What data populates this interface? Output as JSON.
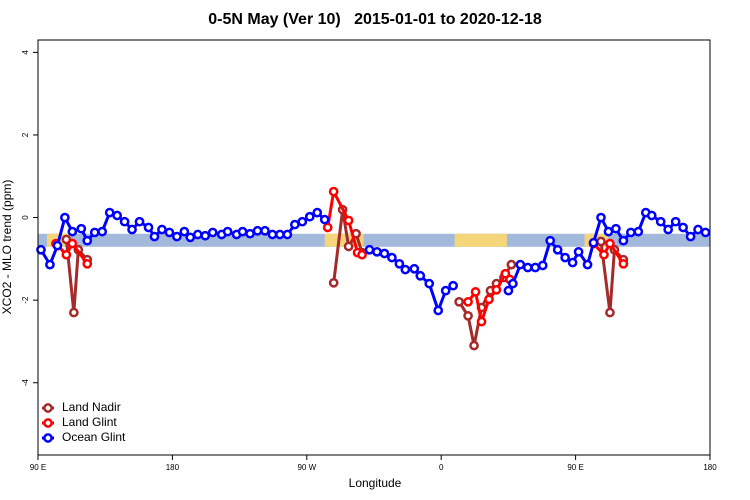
{
  "chart_data": {
    "type": "line",
    "title": "0-5N May (Ver 10)   2015-01-01 to 2020-12-18",
    "x_label": "Longitude",
    "y_label": "XCO2 - MLO trend (ppm)",
    "xlim": [
      90,
      540
    ],
    "ylim": [
      -5.75,
      4.3
    ],
    "xticks": [
      {
        "value": 90,
        "label": "90 E"
      },
      180,
      {
        "value": 270,
        "label": "90 W"
      },
      {
        "value": 360,
        "label": "0"
      },
      {
        "value": 450,
        "label": "90 E"
      },
      {
        "value": 540,
        "label": "180"
      }
    ],
    "yticks": [
      -4,
      -2,
      0,
      2,
      4
    ],
    "legend": "bottom-left",
    "band": {
      "y": -0.55,
      "segments": [
        {
          "from": 90,
          "to": 540,
          "color": "#a3b9dc"
        },
        {
          "from": 96,
          "to": 112,
          "color": "#f5d57a"
        },
        {
          "from": 282,
          "to": 308,
          "color": "#f5d57a"
        },
        {
          "from": 369,
          "to": 404,
          "color": "#f5d57a"
        },
        {
          "from": 456,
          "to": 472,
          "color": "#f5d57a"
        }
      ]
    },
    "series": [
      {
        "name": "Land Nadir",
        "color": "#a52a2a",
        "x": [
          109,
          114,
          117,
          123,
          null,
          288,
          294,
          298,
          303,
          307,
          null,
          372,
          378,
          382,
          387,
          393,
          397,
          402,
          407,
          null,
          467,
          473,
          476,
          482
        ],
        "values": [
          -0.53,
          -2.3,
          -0.78,
          -1.02,
          null,
          -1.58,
          0.19,
          -0.7,
          -0.39,
          -0.85,
          null,
          -2.04,
          -2.38,
          -3.1,
          -2.18,
          -1.77,
          -1.6,
          -1.45,
          -1.14,
          null,
          -0.58,
          -2.3,
          -0.78,
          -1.02
        ]
      },
      {
        "name": "Land Glint",
        "color": "#ff0000",
        "x": [
          102,
          109,
          113,
          123,
          null,
          284,
          288,
          298,
          304,
          307,
          null,
          378,
          383,
          387,
          392,
          397,
          403,
          406,
          null,
          462,
          469,
          473,
          482
        ],
        "values": [
          -0.63,
          -0.9,
          -0.63,
          -1.12,
          null,
          -0.24,
          0.63,
          -0.07,
          -0.85,
          -0.9,
          null,
          -2.04,
          -1.8,
          -2.52,
          -1.98,
          -1.75,
          -1.36,
          -1.5,
          null,
          -0.63,
          -0.9,
          -0.63,
          -1.12
        ]
      },
      {
        "name": "Ocean Glint",
        "color": "#0000ff",
        "x": [
          92,
          98,
          103,
          108,
          113,
          119,
          123,
          128,
          133,
          138,
          143,
          148,
          153,
          158,
          164,
          168,
          173,
          178,
          183,
          188,
          192,
          197,
          202,
          207,
          213,
          217,
          223,
          227,
          232,
          237,
          242,
          247,
          252,
          257,
          262,
          267,
          272,
          277,
          282,
          null,
          312,
          317,
          322,
          327,
          332,
          336,
          342,
          346,
          352,
          358,
          363,
          368,
          null,
          405,
          408,
          413,
          418,
          423,
          428,
          433,
          438,
          443,
          448,
          452,
          458,
          462,
          467,
          472,
          477,
          482,
          487,
          492,
          497,
          501,
          507,
          512,
          517,
          522,
          527,
          532,
          537
        ],
        "values": [
          -0.78,
          -1.14,
          -0.68,
          0.0,
          -0.34,
          -0.27,
          -0.56,
          -0.36,
          -0.34,
          0.12,
          0.05,
          -0.1,
          -0.29,
          -0.1,
          -0.24,
          -0.46,
          -0.29,
          -0.36,
          -0.46,
          -0.34,
          -0.48,
          -0.41,
          -0.44,
          -0.36,
          -0.41,
          -0.34,
          -0.41,
          -0.34,
          -0.39,
          -0.32,
          -0.32,
          -0.41,
          -0.41,
          -0.41,
          -0.17,
          -0.1,
          0.02,
          0.12,
          -0.05,
          null,
          -0.78,
          -0.83,
          -0.87,
          -0.97,
          -1.12,
          -1.26,
          -1.24,
          -1.41,
          -1.6,
          -2.25,
          -1.77,
          -1.65,
          null,
          -1.77,
          -1.6,
          -1.14,
          -1.21,
          -1.21,
          -1.16,
          -0.56,
          -0.78,
          -0.97,
          -1.09,
          -0.83,
          -1.14,
          -0.61,
          0.0,
          -0.34,
          -0.27,
          -0.56,
          -0.36,
          -0.34,
          0.12,
          0.05,
          -0.1,
          -0.29,
          -0.1,
          -0.24,
          -0.46,
          -0.29,
          -0.36
        ]
      }
    ]
  }
}
